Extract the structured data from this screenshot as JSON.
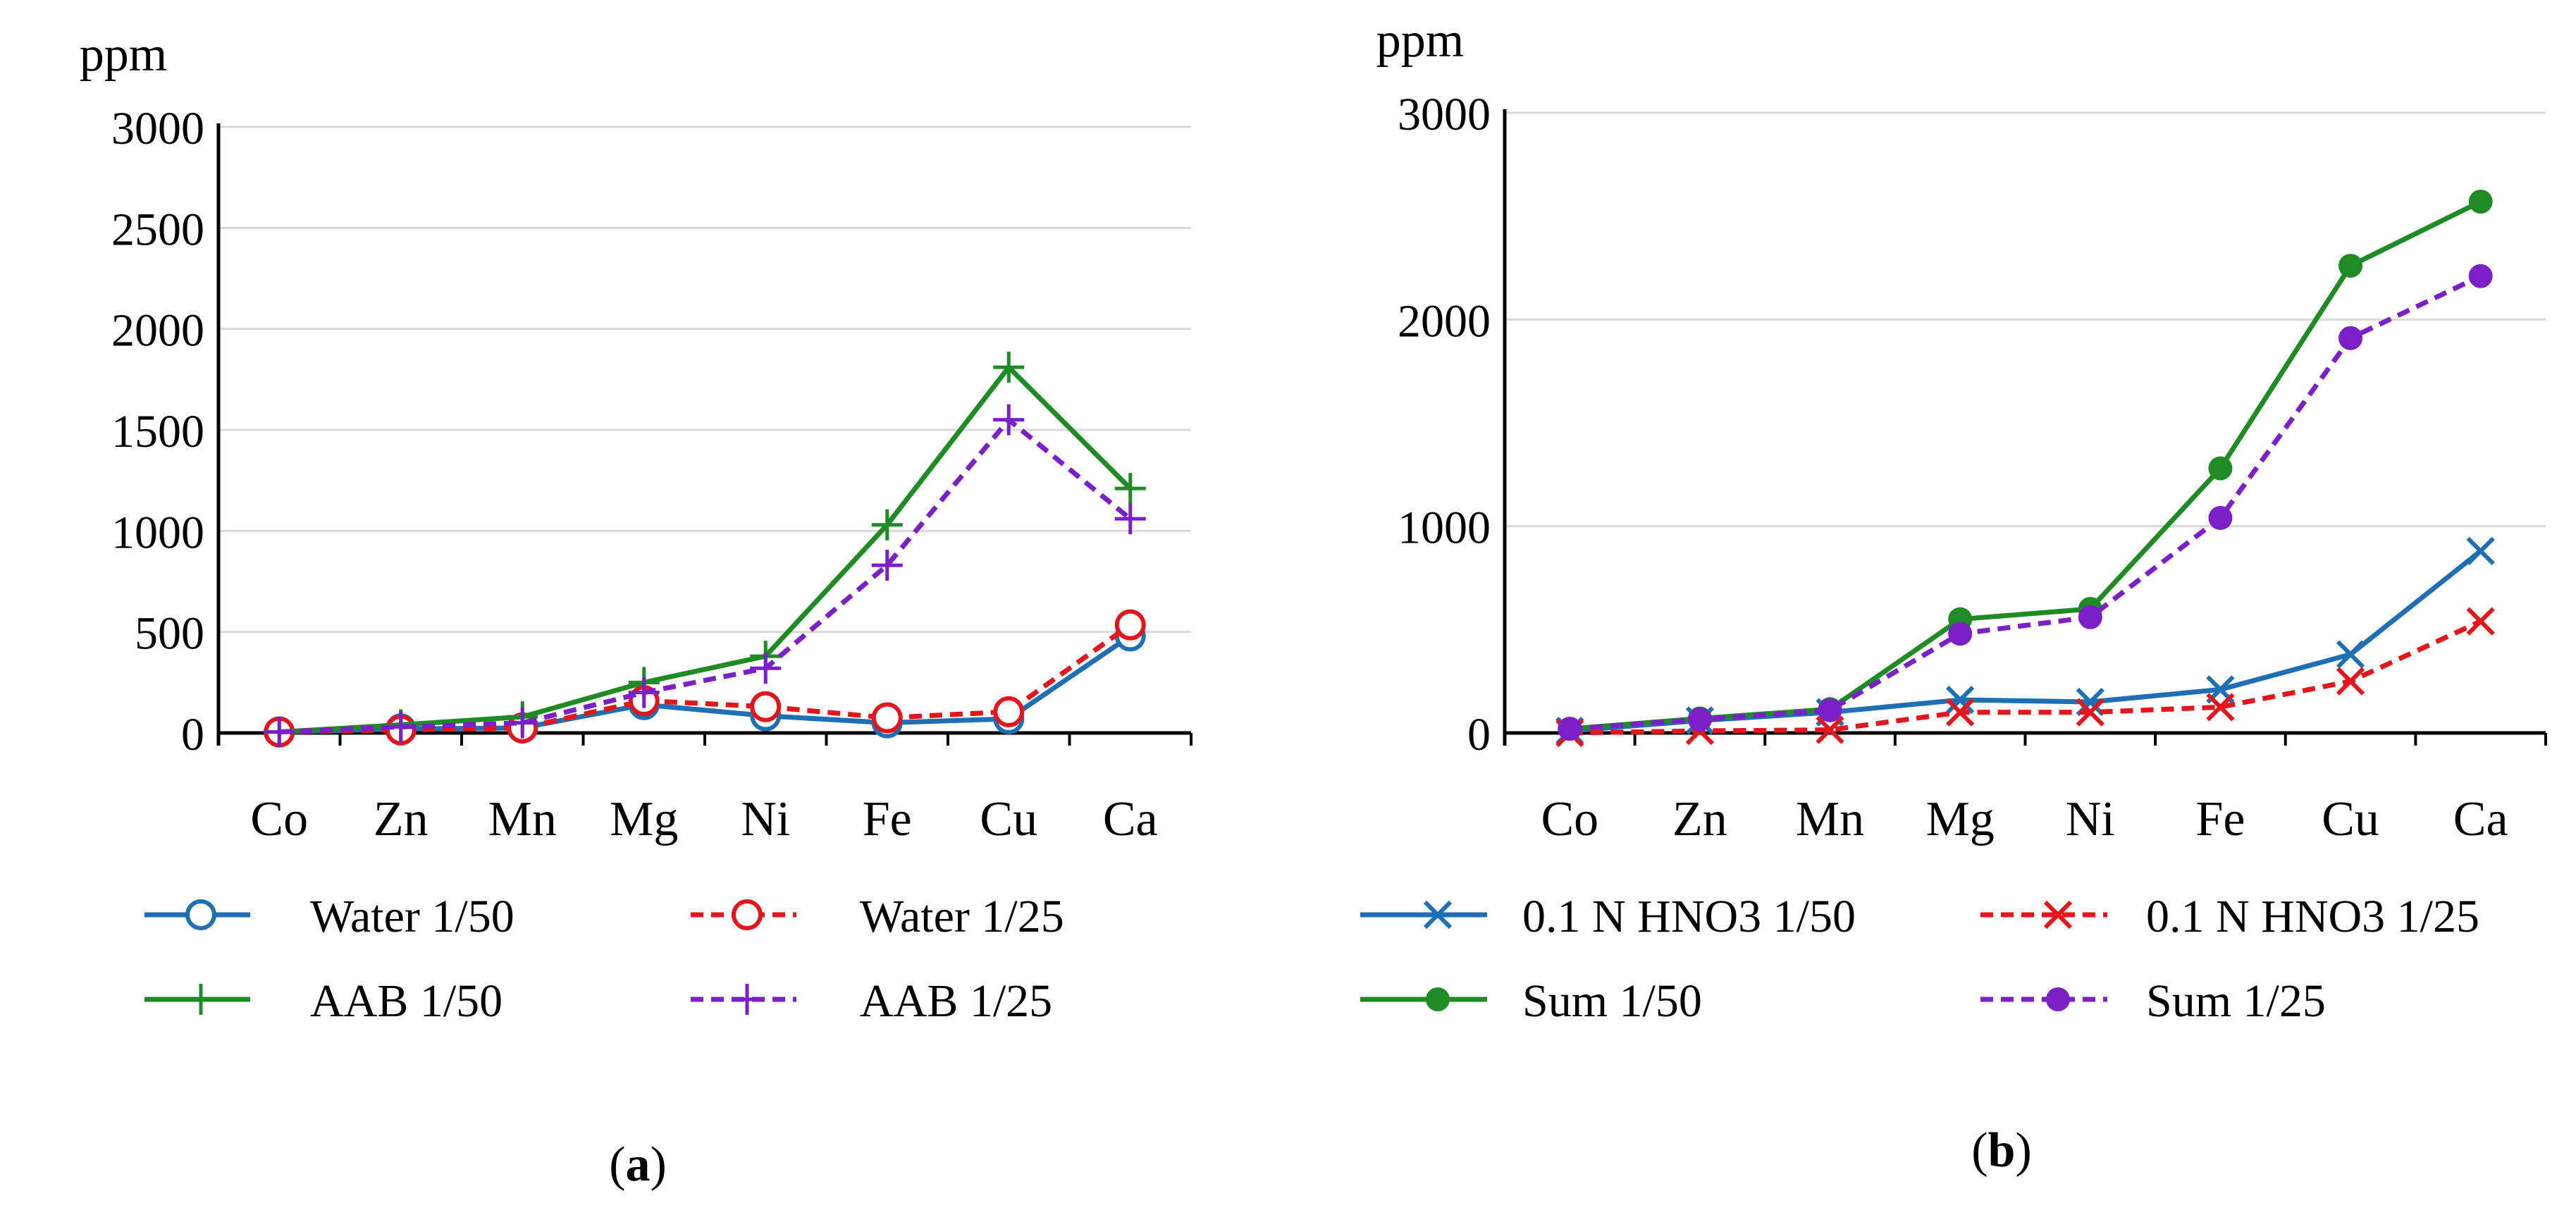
{
  "chart_data": [
    {
      "type": "line",
      "panel_label": "a",
      "ylabel": "ppm",
      "xlabel": "",
      "categories": [
        "Co",
        "Zn",
        "Mn",
        "Mg",
        "Ni",
        "Fe",
        "Cu",
        "Ca"
      ],
      "ylim": [
        0,
        3000
      ],
      "yticks": [
        0,
        500,
        1000,
        1500,
        2000,
        2500,
        3000
      ],
      "grid": true,
      "legend_position": "bottom",
      "series": [
        {
          "name": "Water 1/50",
          "color": "#1f6fb5",
          "dash": "solid",
          "marker": "circle",
          "values": [
            5,
            20,
            25,
            140,
            85,
            50,
            70,
            480
          ]
        },
        {
          "name": "Water 1/25",
          "color": "#e3161b",
          "dash": "dashed",
          "marker": "circle",
          "values": [
            5,
            15,
            25,
            160,
            130,
            75,
            105,
            535
          ]
        },
        {
          "name": "AAB 1/50",
          "color": "#1e8b24",
          "dash": "solid",
          "marker": "plus",
          "values": [
            5,
            40,
            80,
            250,
            380,
            1030,
            1810,
            1210
          ]
        },
        {
          "name": "AAB 1/25",
          "color": "#7b1fc8",
          "dash": "dashed",
          "marker": "plus",
          "values": [
            5,
            30,
            50,
            200,
            320,
            830,
            1550,
            1060
          ]
        }
      ]
    },
    {
      "type": "line",
      "panel_label": "b",
      "ylabel": "ppm",
      "xlabel": "",
      "categories": [
        "Co",
        "Zn",
        "Mn",
        "Mg",
        "Ni",
        "Fe",
        "Cu",
        "Ca"
      ],
      "ylim": [
        0,
        3000
      ],
      "yticks": [
        0,
        1000,
        2000,
        3000
      ],
      "grid": true,
      "legend_position": "bottom",
      "series": [
        {
          "name": "0.1 N HNO3 1/50",
          "color": "#1f6fb5",
          "dash": "solid",
          "marker": "x",
          "values": [
            10,
            60,
            100,
            160,
            150,
            210,
            380,
            880
          ]
        },
        {
          "name": "0.1 N HNO3 1/25",
          "color": "#e3161b",
          "dash": "dashed",
          "marker": "x",
          "values": [
            0,
            10,
            15,
            100,
            100,
            125,
            250,
            540
          ]
        },
        {
          "name": "Sum 1/50",
          "color": "#1e8b24",
          "dash": "solid",
          "marker": "dot",
          "values": [
            20,
            70,
            115,
            550,
            600,
            1280,
            2260,
            2570
          ]
        },
        {
          "name": "Sum 1/25",
          "color": "#7b1fc8",
          "dash": "dashed",
          "marker": "dot",
          "values": [
            20,
            65,
            110,
            480,
            560,
            1040,
            1910,
            2210
          ]
        }
      ]
    }
  ]
}
